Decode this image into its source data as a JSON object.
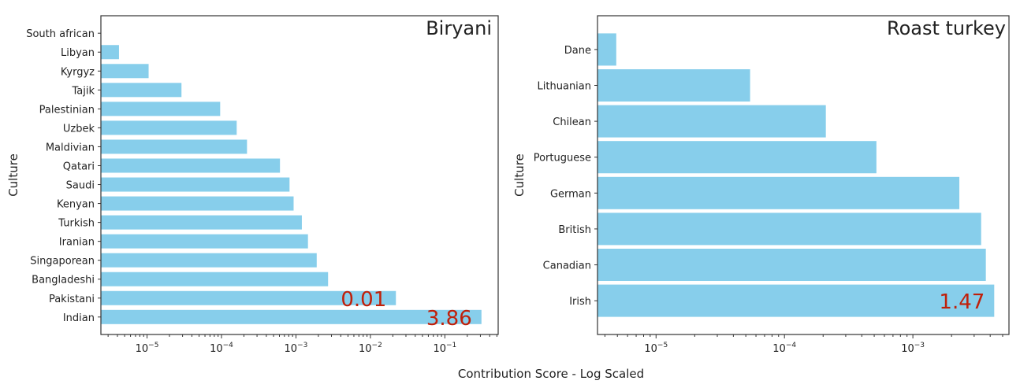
{
  "xlabel": "Contribution Score - Log Scaled",
  "colors": {
    "bar": "#87ceeb",
    "annotation": "#c0200a"
  },
  "chart_data": [
    {
      "type": "bar",
      "orientation": "horizontal",
      "title": "Biryani",
      "ylabel": "Culture",
      "xscale": "log",
      "xlim": [
        2.4e-06,
        0.52
      ],
      "xticks": [
        {
          "v": 1e-05,
          "e": "−5"
        },
        {
          "v": 0.0001,
          "e": "−4"
        },
        {
          "v": 0.001,
          "e": "−3"
        },
        {
          "v": 0.01,
          "e": "−2"
        },
        {
          "v": 0.1,
          "e": "−1"
        }
      ],
      "categories": [
        "South african",
        "Libyan",
        "Kyrgyz",
        "Tajik",
        "Palestinian",
        "Uzbek",
        "Maldivian",
        "Qatari",
        "Saudi",
        "Kenyan",
        "Turkish",
        "Iranian",
        "Singaporean",
        "Bangladeshi",
        "Pakistani",
        "Indian"
      ],
      "values": [
        0,
        4.2e-06,
        1.05e-05,
        2.9e-05,
        9.6e-05,
        0.00016,
        0.00022,
        0.00061,
        0.00082,
        0.00093,
        0.0012,
        0.00145,
        0.0019,
        0.0027,
        0.022,
        0.31
      ],
      "annotations": [
        {
          "category": "Pakistani",
          "text": "0.01"
        },
        {
          "category": "Indian",
          "text": "3.86"
        }
      ],
      "grid": false
    },
    {
      "type": "bar",
      "orientation": "horizontal",
      "title": "Roast turkey",
      "ylabel": "Culture",
      "xscale": "log",
      "xlim": [
        3.5e-06,
        0.0056
      ],
      "xticks": [
        {
          "v": 1e-05,
          "e": "−5"
        },
        {
          "v": 0.0001,
          "e": "−4"
        },
        {
          "v": 0.001,
          "e": "−3"
        }
      ],
      "categories": [
        "Dane",
        "Lithuanian",
        "Chilean",
        "Portuguese",
        "German",
        "British",
        "Canadian",
        "Irish"
      ],
      "values": [
        4.9e-06,
        5.4e-05,
        0.00021,
        0.00052,
        0.0023,
        0.0034,
        0.0037,
        0.0043
      ],
      "annotations": [
        {
          "category": "Irish",
          "text": "1.47"
        }
      ],
      "grid": false
    }
  ]
}
